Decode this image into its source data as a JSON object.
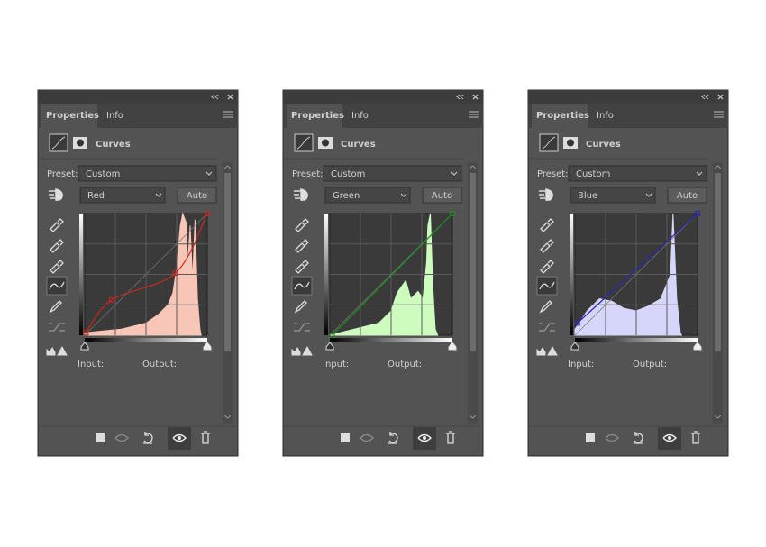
{
  "panels": [
    {
      "tab_active": "Properties",
      "tab_inactive": "Info",
      "title": "Curves",
      "preset_label": "Preset:",
      "preset_value": "Custom",
      "channel": "Red",
      "auto_button": "Auto",
      "input_label": "Input:",
      "output_label": "Output:"
    },
    {
      "tab_active": "Properties",
      "tab_inactive": "Info",
      "title": "Curves",
      "preset_label": "Preset:",
      "preset_value": "Custom",
      "channel": "Green",
      "auto_button": "Auto",
      "input_label": "Input:",
      "output_label": "Output:"
    },
    {
      "tab_active": "Properties",
      "tab_inactive": "Info",
      "title": "Curves",
      "preset_label": "Preset:",
      "preset_value": "Custom",
      "channel": "Blue",
      "auto_button": "Auto",
      "input_label": "Input:",
      "output_label": "Output:"
    }
  ]
}
